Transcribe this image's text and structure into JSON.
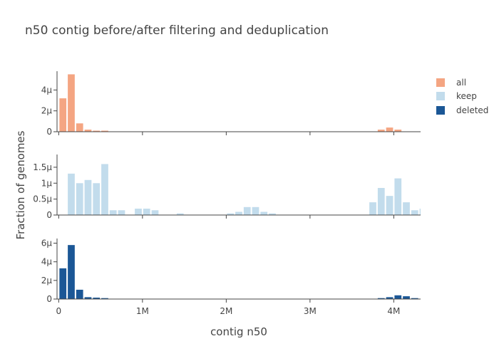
{
  "chart_data": {
    "type": "bar",
    "title": "n50 contig before/after filtering and deduplication",
    "xlabel": "contig n50",
    "ylabel": "Fraction of genomes",
    "bin_width": 100000,
    "x_range": [
      -20000,
      4320000
    ],
    "x_ticks": [
      {
        "value": 0,
        "label": "0"
      },
      {
        "value": 1000000,
        "label": "1M"
      },
      {
        "value": 2000000,
        "label": "2M"
      },
      {
        "value": 3000000,
        "label": "3M"
      },
      {
        "value": 4000000,
        "label": "4M"
      }
    ],
    "legend_position": "top-right",
    "panels": [
      {
        "series_name": "all",
        "color": "#f4a582",
        "ylim": [
          0,
          5.8e-06
        ],
        "y_ticks": [
          {
            "value": 0,
            "label": "0"
          },
          {
            "value": 2e-06,
            "label": "2μ"
          },
          {
            "value": 4e-06,
            "label": "4μ"
          }
        ],
        "bins": [
          {
            "x": 0,
            "y": 3.2e-06
          },
          {
            "x": 100000,
            "y": 5.5e-06
          },
          {
            "x": 200000,
            "y": 8e-07
          },
          {
            "x": 300000,
            "y": 2e-07
          },
          {
            "x": 400000,
            "y": 1e-07
          },
          {
            "x": 500000,
            "y": 1e-07
          },
          {
            "x": 600000,
            "y": 3e-08
          },
          {
            "x": 700000,
            "y": 2e-08
          },
          {
            "x": 800000,
            "y": 2e-08
          },
          {
            "x": 900000,
            "y": 2e-08
          },
          {
            "x": 1000000,
            "y": 2e-08
          },
          {
            "x": 3700000,
            "y": 3e-08
          },
          {
            "x": 3800000,
            "y": 2e-07
          },
          {
            "x": 3900000,
            "y": 4e-07
          },
          {
            "x": 4000000,
            "y": 2e-07
          },
          {
            "x": 4100000,
            "y": 3e-08
          }
        ]
      },
      {
        "series_name": "keep",
        "color": "#c2dcec",
        "ylim": [
          0,
          1.9e-06
        ],
        "y_ticks": [
          {
            "value": 0,
            "label": "0"
          },
          {
            "value": 5e-07,
            "label": "0.5μ"
          },
          {
            "value": 1e-06,
            "label": "1μ"
          },
          {
            "value": 1.5e-06,
            "label": "1.5μ"
          }
        ],
        "bins": [
          {
            "x": 100000,
            "y": 1.3e-06
          },
          {
            "x": 200000,
            "y": 1e-06
          },
          {
            "x": 300000,
            "y": 1.1e-06
          },
          {
            "x": 400000,
            "y": 1e-06
          },
          {
            "x": 500000,
            "y": 1.6e-06
          },
          {
            "x": 600000,
            "y": 1.5e-07
          },
          {
            "x": 700000,
            "y": 1.5e-07
          },
          {
            "x": 900000,
            "y": 2e-07
          },
          {
            "x": 1000000,
            "y": 2e-07
          },
          {
            "x": 1100000,
            "y": 1.5e-07
          },
          {
            "x": 1400000,
            "y": 5e-08
          },
          {
            "x": 2000000,
            "y": 5e-08
          },
          {
            "x": 2100000,
            "y": 1e-07
          },
          {
            "x": 2200000,
            "y": 2.5e-07
          },
          {
            "x": 2300000,
            "y": 2.5e-07
          },
          {
            "x": 2400000,
            "y": 1e-07
          },
          {
            "x": 2500000,
            "y": 5e-08
          },
          {
            "x": 3700000,
            "y": 4e-07
          },
          {
            "x": 3800000,
            "y": 8.5e-07
          },
          {
            "x": 3900000,
            "y": 6e-07
          },
          {
            "x": 4000000,
            "y": 1.15e-06
          },
          {
            "x": 4100000,
            "y": 4e-07
          },
          {
            "x": 4200000,
            "y": 1.5e-07
          },
          {
            "x": 4300000,
            "y": 2e-07
          },
          {
            "x": 4400000,
            "y": 1e-07
          }
        ]
      },
      {
        "series_name": "deleted",
        "color": "#1b5796",
        "ylim": [
          0,
          6.5e-06
        ],
        "y_ticks": [
          {
            "value": 0,
            "label": "0"
          },
          {
            "value": 2e-06,
            "label": "2μ"
          },
          {
            "value": 4e-06,
            "label": "4μ"
          },
          {
            "value": 6e-06,
            "label": "6μ"
          }
        ],
        "bins": [
          {
            "x": 0,
            "y": 3.3e-06
          },
          {
            "x": 100000,
            "y": 5.8e-06
          },
          {
            "x": 200000,
            "y": 1e-06
          },
          {
            "x": 300000,
            "y": 2e-07
          },
          {
            "x": 400000,
            "y": 1.5e-07
          },
          {
            "x": 500000,
            "y": 1e-07
          },
          {
            "x": 600000,
            "y": 3e-08
          },
          {
            "x": 700000,
            "y": 3e-08
          },
          {
            "x": 800000,
            "y": 2e-08
          },
          {
            "x": 1000000,
            "y": 2e-08
          },
          {
            "x": 2000000,
            "y": 2e-08
          },
          {
            "x": 3700000,
            "y": 3e-08
          },
          {
            "x": 3800000,
            "y": 1e-07
          },
          {
            "x": 3900000,
            "y": 2e-07
          },
          {
            "x": 4000000,
            "y": 4e-07
          },
          {
            "x": 4100000,
            "y": 3e-07
          },
          {
            "x": 4200000,
            "y": 1e-07
          },
          {
            "x": 4300000,
            "y": 3e-08
          }
        ]
      }
    ]
  }
}
